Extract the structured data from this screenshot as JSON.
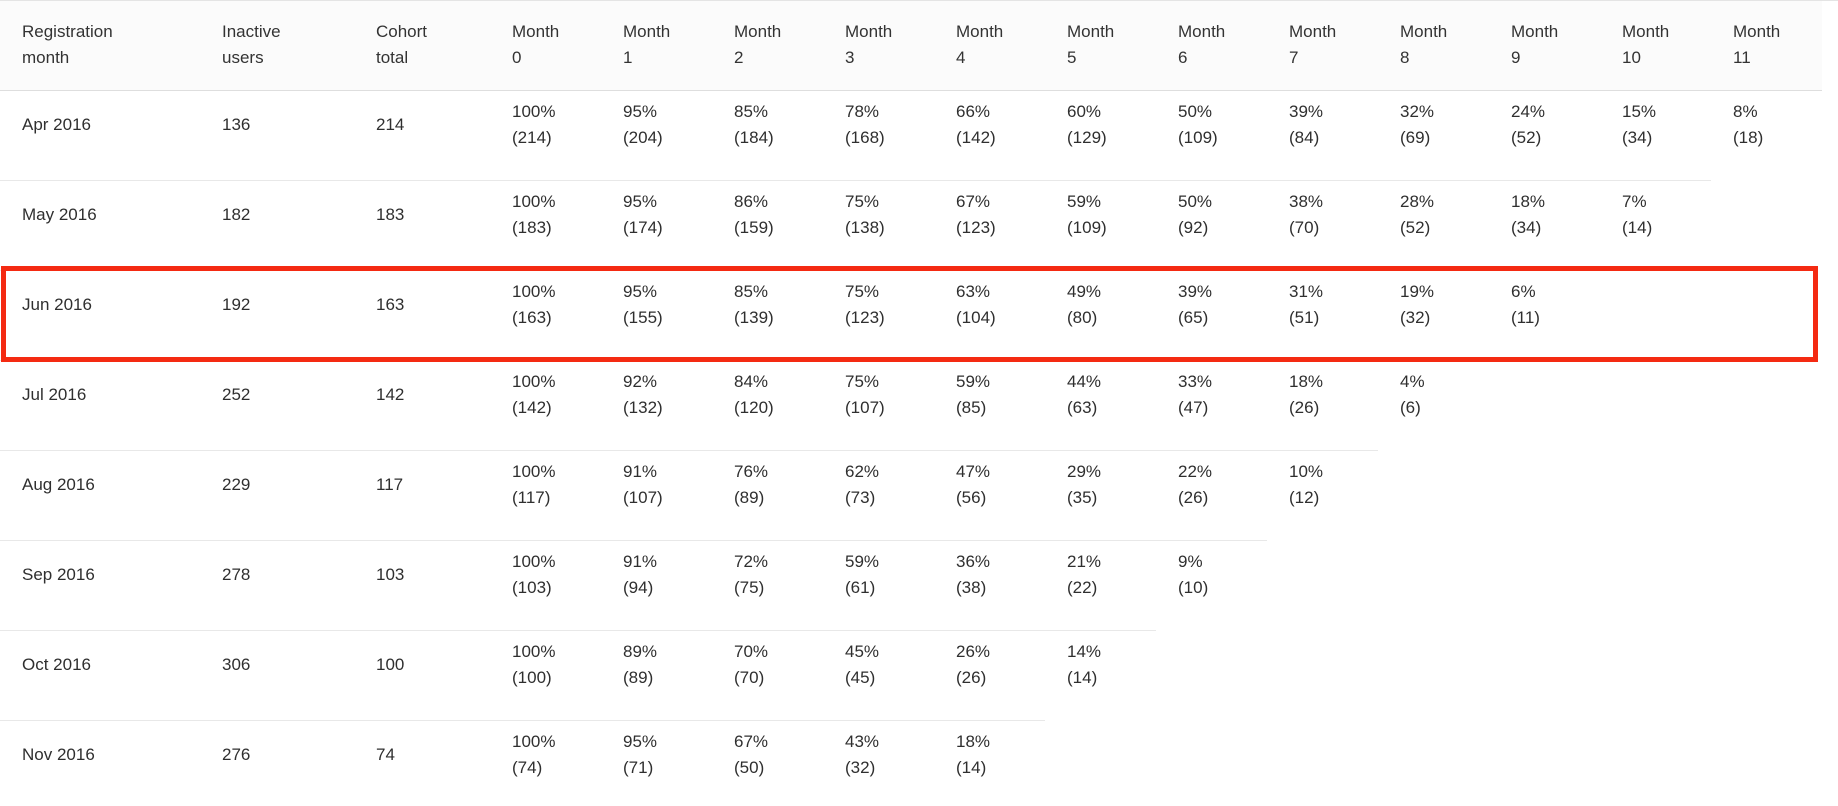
{
  "table": {
    "columns": [
      [
        "Registration",
        "month"
      ],
      [
        "Inactive",
        "users"
      ],
      [
        "Cohort",
        "total"
      ],
      [
        "Month",
        "0"
      ],
      [
        "Month",
        "1"
      ],
      [
        "Month",
        "2"
      ],
      [
        "Month",
        "3"
      ],
      [
        "Month",
        "4"
      ],
      [
        "Month",
        "5"
      ],
      [
        "Month",
        "6"
      ],
      [
        "Month",
        "7"
      ],
      [
        "Month",
        "8"
      ],
      [
        "Month",
        "9"
      ],
      [
        "Month",
        "10"
      ],
      [
        "Month",
        "11"
      ]
    ],
    "rows": [
      {
        "month": "Apr 2016",
        "inactive": "136",
        "total": "214",
        "cells": [
          [
            "100%",
            "(214)"
          ],
          [
            "95%",
            "(204)"
          ],
          [
            "85%",
            "(184)"
          ],
          [
            "78%",
            "(168)"
          ],
          [
            "66%",
            "(142)"
          ],
          [
            "60%",
            "(129)"
          ],
          [
            "50%",
            "(109)"
          ],
          [
            "39%",
            "(84)"
          ],
          [
            "32%",
            "(69)"
          ],
          [
            "24%",
            "(52)"
          ],
          [
            "15%",
            "(34)"
          ],
          [
            "8%",
            "(18)"
          ]
        ]
      },
      {
        "month": "May 2016",
        "inactive": "182",
        "total": "183",
        "cells": [
          [
            "100%",
            "(183)"
          ],
          [
            "95%",
            "(174)"
          ],
          [
            "86%",
            "(159)"
          ],
          [
            "75%",
            "(138)"
          ],
          [
            "67%",
            "(123)"
          ],
          [
            "59%",
            "(109)"
          ],
          [
            "50%",
            "(92)"
          ],
          [
            "38%",
            "(70)"
          ],
          [
            "28%",
            "(52)"
          ],
          [
            "18%",
            "(34)"
          ],
          [
            "7%",
            "(14)"
          ]
        ]
      },
      {
        "month": "Jun 2016",
        "inactive": "192",
        "total": "163",
        "highlighted": true,
        "cells": [
          [
            "100%",
            "(163)"
          ],
          [
            "95%",
            "(155)"
          ],
          [
            "85%",
            "(139)"
          ],
          [
            "75%",
            "(123)"
          ],
          [
            "63%",
            "(104)"
          ],
          [
            "49%",
            "(80)"
          ],
          [
            "39%",
            "(65)"
          ],
          [
            "31%",
            "(51)"
          ],
          [
            "19%",
            "(32)"
          ],
          [
            "6%",
            "(11)"
          ]
        ]
      },
      {
        "month": "Jul 2016",
        "inactive": "252",
        "total": "142",
        "cells": [
          [
            "100%",
            "(142)"
          ],
          [
            "92%",
            "(132)"
          ],
          [
            "84%",
            "(120)"
          ],
          [
            "75%",
            "(107)"
          ],
          [
            "59%",
            "(85)"
          ],
          [
            "44%",
            "(63)"
          ],
          [
            "33%",
            "(47)"
          ],
          [
            "18%",
            "(26)"
          ],
          [
            "4%",
            "(6)"
          ]
        ]
      },
      {
        "month": "Aug 2016",
        "inactive": "229",
        "total": "117",
        "cells": [
          [
            "100%",
            "(117)"
          ],
          [
            "91%",
            "(107)"
          ],
          [
            "76%",
            "(89)"
          ],
          [
            "62%",
            "(73)"
          ],
          [
            "47%",
            "(56)"
          ],
          [
            "29%",
            "(35)"
          ],
          [
            "22%",
            "(26)"
          ],
          [
            "10%",
            "(12)"
          ]
        ]
      },
      {
        "month": "Sep 2016",
        "inactive": "278",
        "total": "103",
        "cells": [
          [
            "100%",
            "(103)"
          ],
          [
            "91%",
            "(94)"
          ],
          [
            "72%",
            "(75)"
          ],
          [
            "59%",
            "(61)"
          ],
          [
            "36%",
            "(38)"
          ],
          [
            "21%",
            "(22)"
          ],
          [
            "9%",
            "(10)"
          ]
        ]
      },
      {
        "month": "Oct 2016",
        "inactive": "306",
        "total": "100",
        "cells": [
          [
            "100%",
            "(100)"
          ],
          [
            "89%",
            "(89)"
          ],
          [
            "70%",
            "(70)"
          ],
          [
            "45%",
            "(45)"
          ],
          [
            "26%",
            "(26)"
          ],
          [
            "14%",
            "(14)"
          ]
        ]
      },
      {
        "month": "Nov 2016",
        "inactive": "276",
        "total": "74",
        "cells": [
          [
            "100%",
            "(74)"
          ],
          [
            "95%",
            "(71)"
          ],
          [
            "67%",
            "(50)"
          ],
          [
            "43%",
            "(32)"
          ],
          [
            "18%",
            "(14)"
          ]
        ]
      }
    ]
  },
  "annotation": {
    "highlighted_row": "Jun 2016",
    "highlight_color": "#f42a12"
  },
  "colors": {
    "text": "#2f2f2f",
    "header_background": "#fbfbfb",
    "row_divider": "#e8e8e8",
    "header_divider": "#dedede"
  }
}
